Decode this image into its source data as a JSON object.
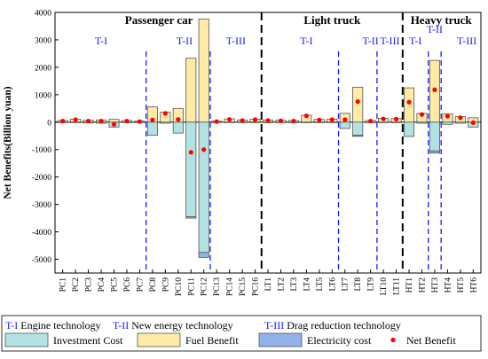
{
  "chart_data": {
    "type": "bar",
    "ylabel": "Net Benefits(Billion yuan)",
    "ylim": [
      -5500,
      4000
    ],
    "yticks": [
      4000,
      3000,
      2000,
      1000,
      0,
      -1000,
      -2000,
      -3000,
      -4000,
      -5000
    ],
    "categories": [
      "PC1",
      "PC2",
      "PC3",
      "PC4",
      "PC5",
      "PC6",
      "PC7",
      "PC8",
      "PC9",
      "PC10",
      "PC11",
      "PC12",
      "PC13",
      "PC14",
      "PC15",
      "PC16",
      "LT1",
      "LT2",
      "LT3",
      "LT4",
      "LT5",
      "LT6",
      "LT7",
      "LT8",
      "LT9",
      "LT10",
      "LT11",
      "HT1",
      "HT2",
      "HT3",
      "HT4",
      "HT5",
      "HT6"
    ],
    "series": [
      {
        "name": "Investment Cost",
        "color": "#b2e2e2",
        "values": [
          -20,
          -20,
          -30,
          -40,
          -180,
          -20,
          -20,
          -480,
          -40,
          -400,
          -3450,
          -4750,
          -20,
          -20,
          -20,
          -20,
          -20,
          -20,
          -20,
          -20,
          -20,
          -20,
          -230,
          -480,
          -20,
          -20,
          -20,
          -520,
          -40,
          -1050,
          -80,
          -40,
          -180
        ]
      },
      {
        "name": "Fuel Benefit",
        "color": "#ffeaa6",
        "values": [
          60,
          110,
          70,
          80,
          100,
          60,
          40,
          560,
          360,
          500,
          2330,
          3760,
          40,
          120,
          80,
          110,
          80,
          70,
          60,
          250,
          100,
          110,
          320,
          1270,
          60,
          140,
          130,
          1250,
          320,
          2250,
          300,
          200,
          160
        ]
      },
      {
        "name": "Electricity cost",
        "color": "#8fb3e8",
        "values": [
          0,
          0,
          0,
          0,
          0,
          0,
          0,
          0,
          0,
          0,
          -50,
          -180,
          0,
          0,
          0,
          0,
          0,
          0,
          0,
          0,
          0,
          0,
          0,
          -40,
          0,
          0,
          0,
          0,
          0,
          -80,
          0,
          0,
          0
        ]
      },
      {
        "name": "Net Benefit",
        "color": "#ff0000",
        "values": [
          40,
          90,
          40,
          40,
          -80,
          40,
          20,
          80,
          320,
          100,
          -1100,
          -1000,
          20,
          100,
          60,
          90,
          60,
          50,
          40,
          230,
          80,
          90,
          90,
          750,
          40,
          120,
          110,
          730,
          280,
          1180,
          220,
          160,
          -20
        ]
      }
    ],
    "groups": [
      {
        "title": "Passenger car",
        "from": 0,
        "to": 15
      },
      {
        "title": "Light truck",
        "from": 16,
        "to": 26
      },
      {
        "title": "Heavy truck",
        "from": 27,
        "to": 32
      }
    ],
    "tech_labels": [
      {
        "text": "T-I",
        "center": 3
      },
      {
        "text": "T-II",
        "center": 9.5
      },
      {
        "text": "T-III",
        "center": 13.5
      },
      {
        "text": "T-I",
        "center": 19
      },
      {
        "text": "T-II",
        "center": 24
      },
      {
        "text": "T-III",
        "center": 25.5
      },
      {
        "text": "T-I",
        "center": 27.5
      },
      {
        "text": "T-II",
        "center": 29
      },
      {
        "text": "T-III",
        "center": 31.5
      }
    ],
    "tech_dividers": [
      7,
      12,
      22,
      25,
      29,
      30
    ],
    "group_dividers": [
      16,
      27
    ],
    "legend_row1": [
      {
        "code": "T-I",
        "text": "Engine technology"
      },
      {
        "code": "T-II",
        "text": "New energy  technology"
      },
      {
        "code": "T-III",
        "text": "Drag reduction technology"
      }
    ],
    "grid": false,
    "legend_position": "bottom"
  }
}
